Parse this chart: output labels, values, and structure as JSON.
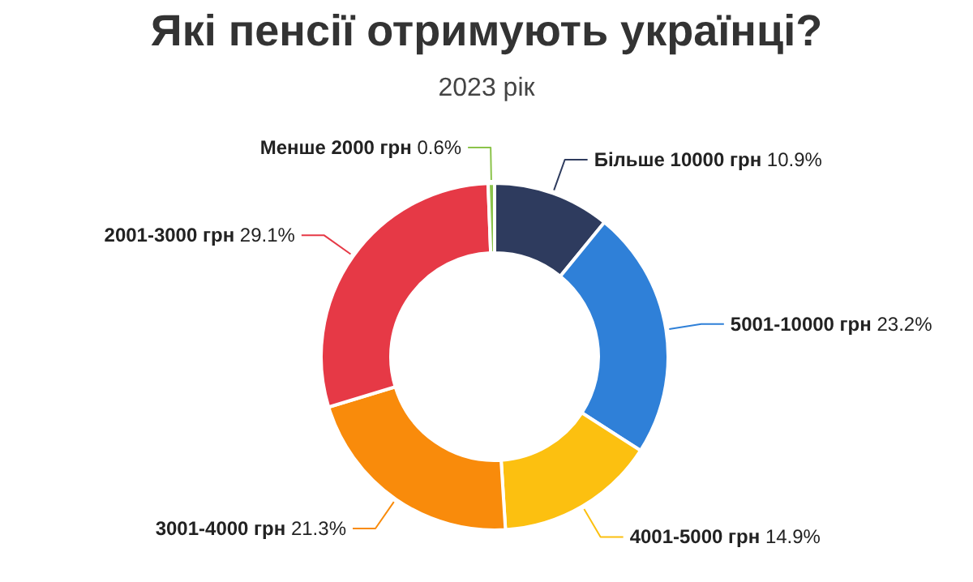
{
  "chart_data": {
    "type": "donut",
    "title": "Які пенсії отримують українці?",
    "subtitle": "2023 рік",
    "categories": [
      "Більше 10000 грн",
      "5001-10000 грн",
      "4001-5000 грн",
      "3001-4000 грн",
      "2001-3000 грн",
      "Менше 2000 грн"
    ],
    "values": [
      10.9,
      23.2,
      14.9,
      21.3,
      29.1,
      0.6
    ],
    "value_labels": [
      "10.9%",
      "23.2%",
      "14.9%",
      "21.3%",
      "29.1%",
      "0.6%"
    ],
    "colors": [
      "#2e3b5e",
      "#2f80d8",
      "#fcc010",
      "#f98b0b",
      "#e63946",
      "#8bc34a"
    ],
    "legend": false
  }
}
